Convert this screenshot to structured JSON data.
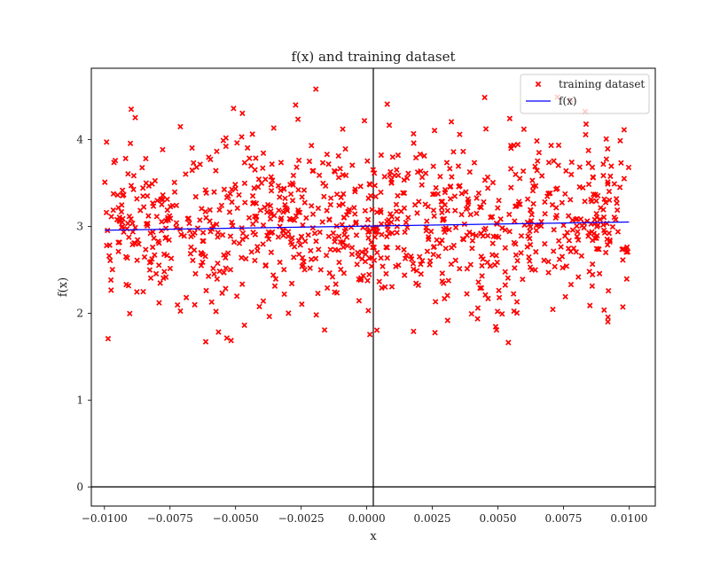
{
  "chart_data": {
    "type": "scatter",
    "title": "f(x) and training dataset",
    "xlabel": "x",
    "ylabel": "f(x)",
    "xlim": [
      -0.0105,
      0.011
    ],
    "ylim": [
      -0.22,
      4.82
    ],
    "xticks": [
      -0.01,
      -0.0075,
      -0.005,
      -0.0025,
      0.0,
      0.0025,
      0.005,
      0.0075,
      0.01
    ],
    "xtick_labels": [
      "−0.0100",
      "−0.0075",
      "−0.0050",
      "−0.0025",
      "0.0000",
      "0.0025",
      "0.0050",
      "0.0075",
      "0.0100"
    ],
    "yticks": [
      0,
      1,
      2,
      3,
      4
    ],
    "ytick_labels": [
      "0",
      "1",
      "2",
      "3",
      "4"
    ],
    "grid": false,
    "zero_lines": true,
    "legend_position": "top-right",
    "series": [
      {
        "name": "training dataset",
        "kind": "scatter",
        "marker": "x",
        "color": "#ff0000",
        "x_range": [
          -0.01,
          0.01
        ],
        "n_points": 1000,
        "mean": 3.0,
        "std": 0.5,
        "min": 1.48,
        "max": 4.58
      },
      {
        "name": "f(x)",
        "kind": "line",
        "color": "#0000ff",
        "x": [
          -0.01,
          0.01
        ],
        "y": [
          2.955,
          3.05
        ]
      }
    ]
  }
}
